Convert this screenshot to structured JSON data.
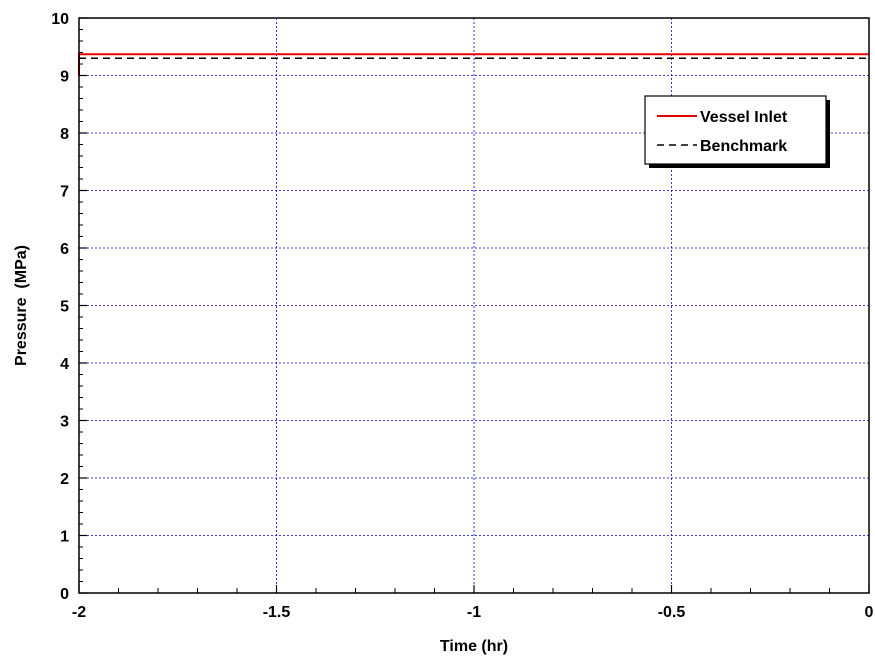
{
  "chart_data": {
    "type": "line",
    "title": "",
    "xlabel": "Time (hr)",
    "ylabel": "Pressure  (MPa)",
    "xlim": [
      -2,
      0
    ],
    "ylim": [
      0,
      10
    ],
    "x_ticks": [
      -2,
      -1.5,
      -1,
      -0.5,
      0
    ],
    "x_tick_labels": [
      "-2",
      "-1.5",
      "-1",
      "-0.5",
      "0"
    ],
    "y_ticks": [
      0,
      1,
      2,
      3,
      4,
      5,
      6,
      7,
      8,
      9,
      10
    ],
    "y_tick_labels": [
      "0",
      "1",
      "2",
      "3",
      "4",
      "5",
      "6",
      "7",
      "8",
      "9",
      "10"
    ],
    "grid": true,
    "grid_color": "#0000cc",
    "legend_position": "top-right",
    "series": [
      {
        "name": "Vessel Inlet",
        "color": "#e00000",
        "style": "solid",
        "points": [
          [
            -2,
            9.0
          ],
          [
            -2,
            9.37
          ],
          [
            0,
            9.37
          ]
        ]
      },
      {
        "name": "Benchmark",
        "color": "#000000",
        "style": "dashed",
        "points": [
          [
            -2,
            9.3
          ],
          [
            0,
            9.3
          ]
        ]
      }
    ]
  }
}
